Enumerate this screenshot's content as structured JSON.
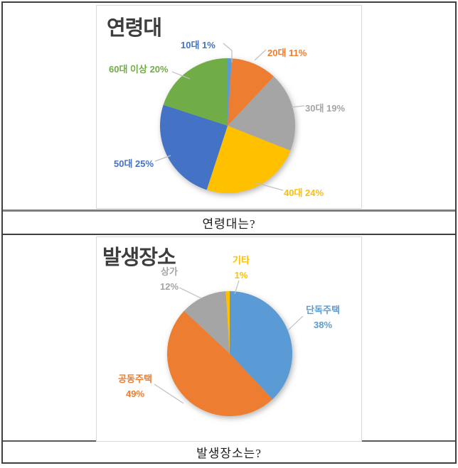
{
  "captions": {
    "age": "연령대는?",
    "place": "발생장소는?"
  },
  "chart_data": [
    {
      "type": "pie",
      "title": "연령대",
      "categories": [
        "10대",
        "20대",
        "30대",
        "40대",
        "50대",
        "60대 이상"
      ],
      "values": [
        1,
        11,
        19,
        24,
        25,
        20
      ],
      "unit": "%",
      "colors": [
        "#5B9BD5",
        "#ED7D31",
        "#A5A5A5",
        "#FFC000",
        "#4472C4",
        "#70AD47"
      ],
      "label_texts": [
        "10대 1%",
        "20대 11%",
        "30대 19%",
        "40대 24%",
        "50대 25%",
        "60대 이상 20%"
      ],
      "label_colors": [
        "#4472C4",
        "#ED7D31",
        "#A5A5A5",
        "#FFC000",
        "#4472C4",
        "#70AD47"
      ],
      "legend_position": "none",
      "start_angle_deg": 0,
      "direction": "clockwise"
    },
    {
      "type": "pie",
      "title": "발생장소",
      "categories": [
        "단독주택",
        "공동주택",
        "상가",
        "기타"
      ],
      "values": [
        38,
        49,
        12,
        1
      ],
      "unit": "%",
      "colors": [
        "#5B9BD5",
        "#ED7D31",
        "#A5A5A5",
        "#FFC000"
      ],
      "label_lines": [
        [
          "단독주택",
          "38%"
        ],
        [
          "공동주택",
          "49%"
        ],
        [
          "상가",
          "12%"
        ],
        [
          "기타",
          "1%"
        ]
      ],
      "label_colors": [
        "#5B9BD5",
        "#ED7D31",
        "#A5A5A5",
        "#FFC000"
      ],
      "legend_position": "none",
      "start_angle_deg": 0,
      "direction": "clockwise"
    }
  ]
}
